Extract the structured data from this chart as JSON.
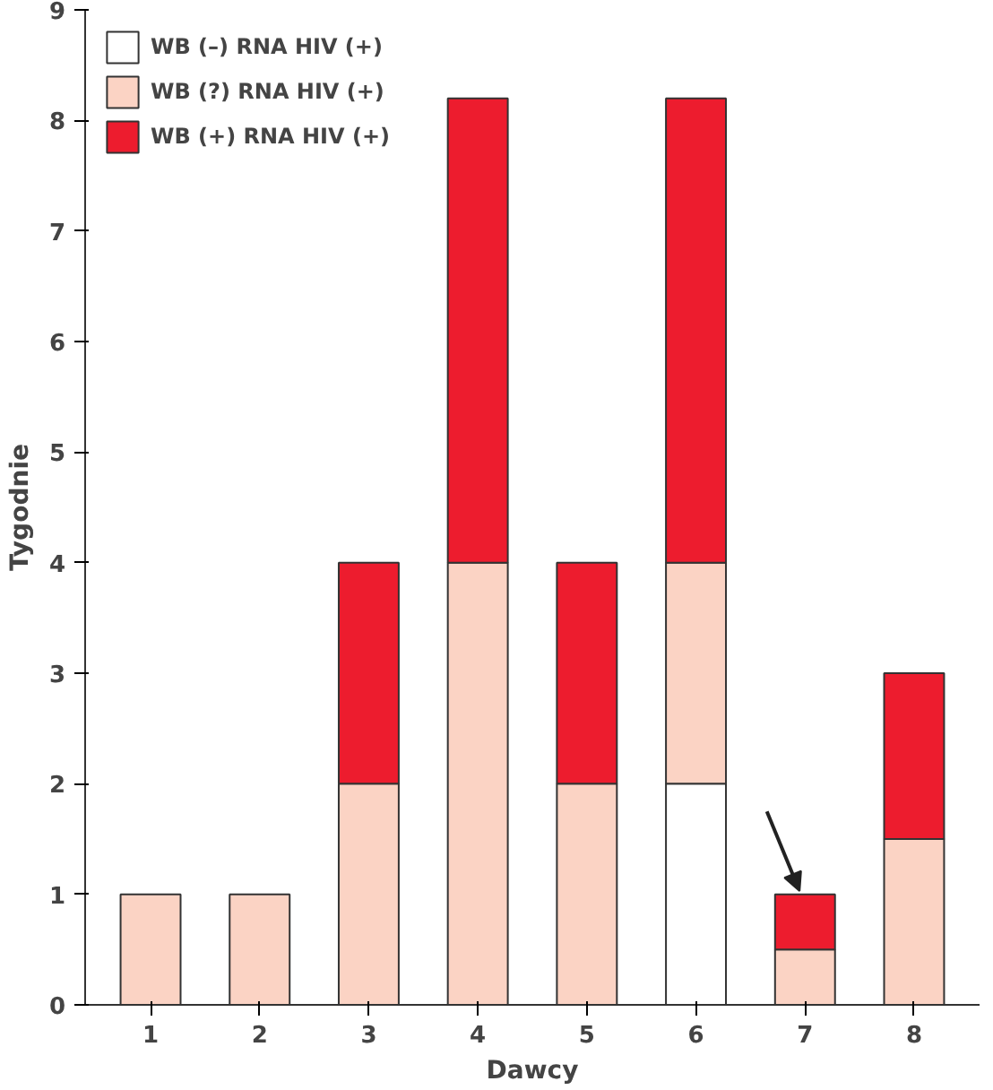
{
  "chart_data": {
    "type": "bar",
    "stacked": true,
    "xlabel": "Dawcy",
    "ylabel": "Tygodnie",
    "categories": [
      "1",
      "2",
      "3",
      "4",
      "5",
      "6",
      "7",
      "8"
    ],
    "series": [
      {
        "name": "WB (–) RNA HIV (+)",
        "color": "#ffffff",
        "values": [
          0,
          0,
          0,
          0,
          0,
          2,
          0,
          0
        ]
      },
      {
        "name": "WB (?) RNA HIV (+)",
        "color": "#fbd3c4",
        "values": [
          1,
          1,
          2,
          4,
          2,
          2,
          0.5,
          1.5
        ]
      },
      {
        "name": "WB (+) RNA HIV (+)",
        "color": "#ed1c2e",
        "values": [
          0,
          0,
          2,
          4.2,
          2,
          4.2,
          0.5,
          1.5
        ]
      }
    ],
    "ylim": [
      0,
      9
    ],
    "yticks": [
      0,
      1,
      2,
      3,
      4,
      5,
      6,
      7,
      8,
      9
    ],
    "grid": false,
    "legend": "top left"
  }
}
